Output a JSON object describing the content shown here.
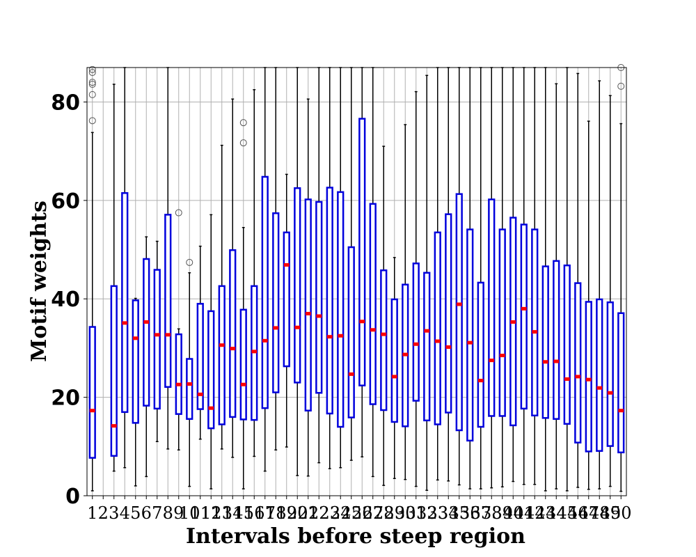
{
  "chart_data": {
    "type": "box",
    "title": "",
    "xlabel": "Intervals before steep region",
    "ylabel": "Motif weights",
    "ylim": [
      0,
      87
    ],
    "yticks": [
      0,
      20,
      40,
      60,
      80
    ],
    "grid": true,
    "colors": {
      "box": "#0000dd",
      "median": "#ff0000",
      "whisker": "#000000",
      "flier": "#555555",
      "grid": "#b0b0b0"
    },
    "categories": [
      "1",
      "2",
      "3",
      "4",
      "5",
      "6",
      "7",
      "8",
      "9",
      "10",
      "11",
      "12",
      "13",
      "14",
      "15",
      "16",
      "17",
      "18",
      "19",
      "20",
      "21",
      "22",
      "23",
      "24",
      "25",
      "26",
      "27",
      "28",
      "29",
      "30",
      "31",
      "32",
      "33",
      "34",
      "35",
      "36",
      "37",
      "38",
      "39",
      "40",
      "41",
      "42",
      "43",
      "44",
      "45",
      "46",
      "47",
      "48",
      "49",
      "50"
    ],
    "boxes": [
      {
        "q1": 7.7,
        "median": 17.3,
        "q3": 34.3,
        "whislo": 1.0,
        "whishi": 73.8,
        "fliers": [
          76.2,
          81.5,
          83.6,
          84.0,
          86.0,
          86.6
        ]
      },
      null,
      {
        "q1": 8.1,
        "median": 14.2,
        "q3": 42.6,
        "whislo": 5.0,
        "whishi": 83.6,
        "fliers": []
      },
      {
        "q1": 17.0,
        "median": 35.1,
        "q3": 61.5,
        "whislo": 5.7,
        "whishi": 87.0,
        "fliers": []
      },
      {
        "q1": 14.8,
        "median": 32.0,
        "q3": 39.7,
        "whislo": 2.0,
        "whishi": 40.1,
        "fliers": []
      },
      {
        "q1": 18.3,
        "median": 35.3,
        "q3": 48.1,
        "whislo": 3.9,
        "whishi": 52.6,
        "fliers": []
      },
      {
        "q1": 17.7,
        "median": 32.7,
        "q3": 45.9,
        "whislo": 11.0,
        "whishi": 51.7,
        "fliers": []
      },
      {
        "q1": 22.1,
        "median": 32.7,
        "q3": 57.1,
        "whislo": 9.5,
        "whishi": 87.0,
        "fliers": []
      },
      {
        "q1": 16.6,
        "median": 22.6,
        "q3": 32.8,
        "whislo": 9.3,
        "whishi": 33.9,
        "fliers": [
          57.5
        ]
      },
      {
        "q1": 15.6,
        "median": 22.7,
        "q3": 27.8,
        "whislo": 1.9,
        "whishi": 45.3,
        "fliers": [
          47.4
        ]
      },
      {
        "q1": 17.6,
        "median": 20.6,
        "q3": 39.0,
        "whislo": 11.5,
        "whishi": 50.7,
        "fliers": []
      },
      {
        "q1": 13.7,
        "median": 17.8,
        "q3": 37.5,
        "whislo": 1.4,
        "whishi": 57.1,
        "fliers": []
      },
      {
        "q1": 14.5,
        "median": 30.6,
        "q3": 42.6,
        "whislo": 9.5,
        "whishi": 71.2,
        "fliers": []
      },
      {
        "q1": 16.0,
        "median": 29.9,
        "q3": 49.9,
        "whislo": 7.8,
        "whishi": 80.6,
        "fliers": []
      },
      {
        "q1": 15.5,
        "median": 22.6,
        "q3": 37.8,
        "whislo": 1.4,
        "whishi": 54.5,
        "fliers": [
          71.7,
          75.8
        ]
      },
      {
        "q1": 15.4,
        "median": 29.3,
        "q3": 42.6,
        "whislo": 8.0,
        "whishi": 82.5,
        "fliers": []
      },
      {
        "q1": 17.8,
        "median": 31.5,
        "q3": 64.8,
        "whislo": 5.0,
        "whishi": 87.0,
        "fliers": []
      },
      {
        "q1": 21.0,
        "median": 34.1,
        "q3": 57.4,
        "whislo": 9.3,
        "whishi": 87.0,
        "fliers": []
      },
      {
        "q1": 26.3,
        "median": 46.9,
        "q3": 53.5,
        "whislo": 9.9,
        "whishi": 65.3,
        "fliers": []
      },
      {
        "q1": 23.0,
        "median": 34.2,
        "q3": 62.5,
        "whislo": 4.1,
        "whishi": 87.0,
        "fliers": []
      },
      {
        "q1": 17.3,
        "median": 37.0,
        "q3": 60.2,
        "whislo": 4.0,
        "whishi": 80.6,
        "fliers": []
      },
      {
        "q1": 20.9,
        "median": 36.5,
        "q3": 59.7,
        "whislo": 6.7,
        "whishi": 87.0,
        "fliers": []
      },
      {
        "q1": 16.7,
        "median": 32.3,
        "q3": 62.6,
        "whislo": 5.5,
        "whishi": 87.0,
        "fliers": []
      },
      {
        "q1": 14.0,
        "median": 32.5,
        "q3": 61.7,
        "whislo": 5.7,
        "whishi": 87.0,
        "fliers": []
      },
      {
        "q1": 15.9,
        "median": 24.7,
        "q3": 50.5,
        "whislo": 7.2,
        "whishi": 87.0,
        "fliers": []
      },
      {
        "q1": 22.4,
        "median": 35.4,
        "q3": 76.6,
        "whislo": 7.9,
        "whishi": 87.0,
        "fliers": []
      },
      {
        "q1": 18.6,
        "median": 33.7,
        "q3": 59.3,
        "whislo": 3.9,
        "whishi": 87.0,
        "fliers": []
      },
      {
        "q1": 17.4,
        "median": 32.8,
        "q3": 45.8,
        "whislo": 2.1,
        "whishi": 71.0,
        "fliers": []
      },
      {
        "q1": 15.0,
        "median": 24.2,
        "q3": 39.9,
        "whislo": 3.5,
        "whishi": 48.4,
        "fliers": []
      },
      {
        "q1": 14.1,
        "median": 28.7,
        "q3": 42.9,
        "whislo": 3.3,
        "whishi": 75.4,
        "fliers": []
      },
      {
        "q1": 19.3,
        "median": 30.8,
        "q3": 47.2,
        "whislo": 1.9,
        "whishi": 82.1,
        "fliers": []
      },
      {
        "q1": 15.3,
        "median": 33.5,
        "q3": 45.3,
        "whislo": 1.1,
        "whishi": 85.4,
        "fliers": []
      },
      {
        "q1": 14.5,
        "median": 31.4,
        "q3": 53.5,
        "whislo": 3.2,
        "whishi": 87.0,
        "fliers": []
      },
      {
        "q1": 16.9,
        "median": 30.2,
        "q3": 57.2,
        "whislo": 3.0,
        "whishi": 87.0,
        "fliers": []
      },
      {
        "q1": 13.3,
        "median": 38.9,
        "q3": 61.3,
        "whislo": 2.2,
        "whishi": 87.0,
        "fliers": []
      },
      {
        "q1": 11.2,
        "median": 31.1,
        "q3": 54.1,
        "whislo": 1.4,
        "whishi": 87.0,
        "fliers": []
      },
      {
        "q1": 14.0,
        "median": 23.4,
        "q3": 43.3,
        "whislo": 1.4,
        "whishi": 87.0,
        "fliers": []
      },
      {
        "q1": 16.2,
        "median": 27.5,
        "q3": 60.2,
        "whislo": 1.6,
        "whishi": 87.0,
        "fliers": []
      },
      {
        "q1": 16.2,
        "median": 28.5,
        "q3": 54.1,
        "whislo": 1.8,
        "whishi": 87.0,
        "fliers": []
      },
      {
        "q1": 14.3,
        "median": 35.3,
        "q3": 56.5,
        "whislo": 2.9,
        "whishi": 87.0,
        "fliers": []
      },
      {
        "q1": 17.7,
        "median": 38.0,
        "q3": 55.1,
        "whislo": 2.3,
        "whishi": 87.0,
        "fliers": []
      },
      {
        "q1": 16.3,
        "median": 33.3,
        "q3": 54.1,
        "whislo": 2.3,
        "whishi": 87.0,
        "fliers": []
      },
      {
        "q1": 15.8,
        "median": 27.2,
        "q3": 46.6,
        "whislo": 1.0,
        "whishi": 87.0,
        "fliers": []
      },
      {
        "q1": 15.6,
        "median": 27.3,
        "q3": 47.7,
        "whislo": 1.4,
        "whishi": 83.7,
        "fliers": []
      },
      {
        "q1": 14.6,
        "median": 23.7,
        "q3": 46.8,
        "whislo": 1.0,
        "whishi": 87.0,
        "fliers": []
      },
      {
        "q1": 10.8,
        "median": 24.2,
        "q3": 43.2,
        "whislo": 1.7,
        "whishi": 85.8,
        "fliers": []
      },
      {
        "q1": 9.0,
        "median": 23.6,
        "q3": 39.4,
        "whislo": 1.3,
        "whishi": 76.1,
        "fliers": []
      },
      {
        "q1": 9.1,
        "median": 21.9,
        "q3": 39.9,
        "whislo": 1.4,
        "whishi": 84.3,
        "fliers": []
      },
      {
        "q1": 10.1,
        "median": 20.9,
        "q3": 39.3,
        "whislo": 1.9,
        "whishi": 81.3,
        "fliers": []
      },
      {
        "q1": 8.8,
        "median": 17.3,
        "q3": 37.1,
        "whislo": 0.9,
        "whishi": 75.6,
        "fliers": [
          83.2,
          87.0
        ]
      }
    ]
  }
}
